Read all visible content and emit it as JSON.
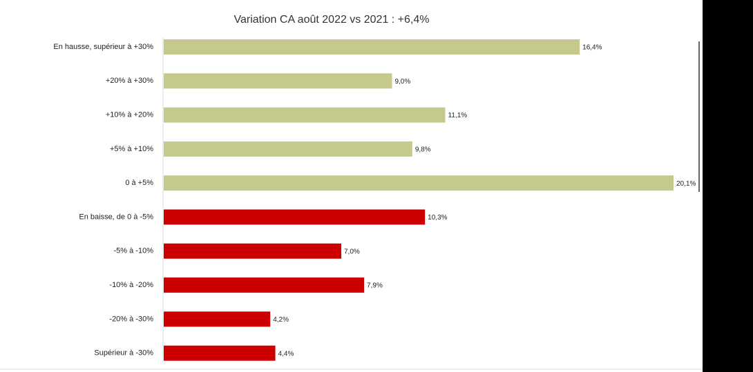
{
  "chart_data": {
    "type": "bar",
    "orientation": "horizontal",
    "title": "Variation CA août 2022 vs 2021 : +6,4%",
    "categories": [
      "En hausse, supérieur à +30%",
      "+20% à +30%",
      "+10% à +20%",
      "+5% à +10%",
      "0 à +5%",
      "En baisse, de 0 à -5%",
      "-5% à -10%",
      "-10% à -20%",
      "-20% à -30%",
      "Supérieur à -30%"
    ],
    "values": [
      16.4,
      9.0,
      11.1,
      9.8,
      20.1,
      10.3,
      7.0,
      7.9,
      4.2,
      4.4
    ],
    "value_labels": [
      "16,4%",
      "9,0%",
      "11,1%",
      "9,8%",
      "20,1%",
      "10,3%",
      "7,0%",
      "7,9%",
      "4,2%",
      "4,4%"
    ],
    "colors": [
      "#c5c98e",
      "#c5c98e",
      "#c5c98e",
      "#c5c98e",
      "#c5c98e",
      "#cc0000",
      "#cc0000",
      "#cc0000",
      "#cc0000",
      "#cc0000"
    ]
  }
}
